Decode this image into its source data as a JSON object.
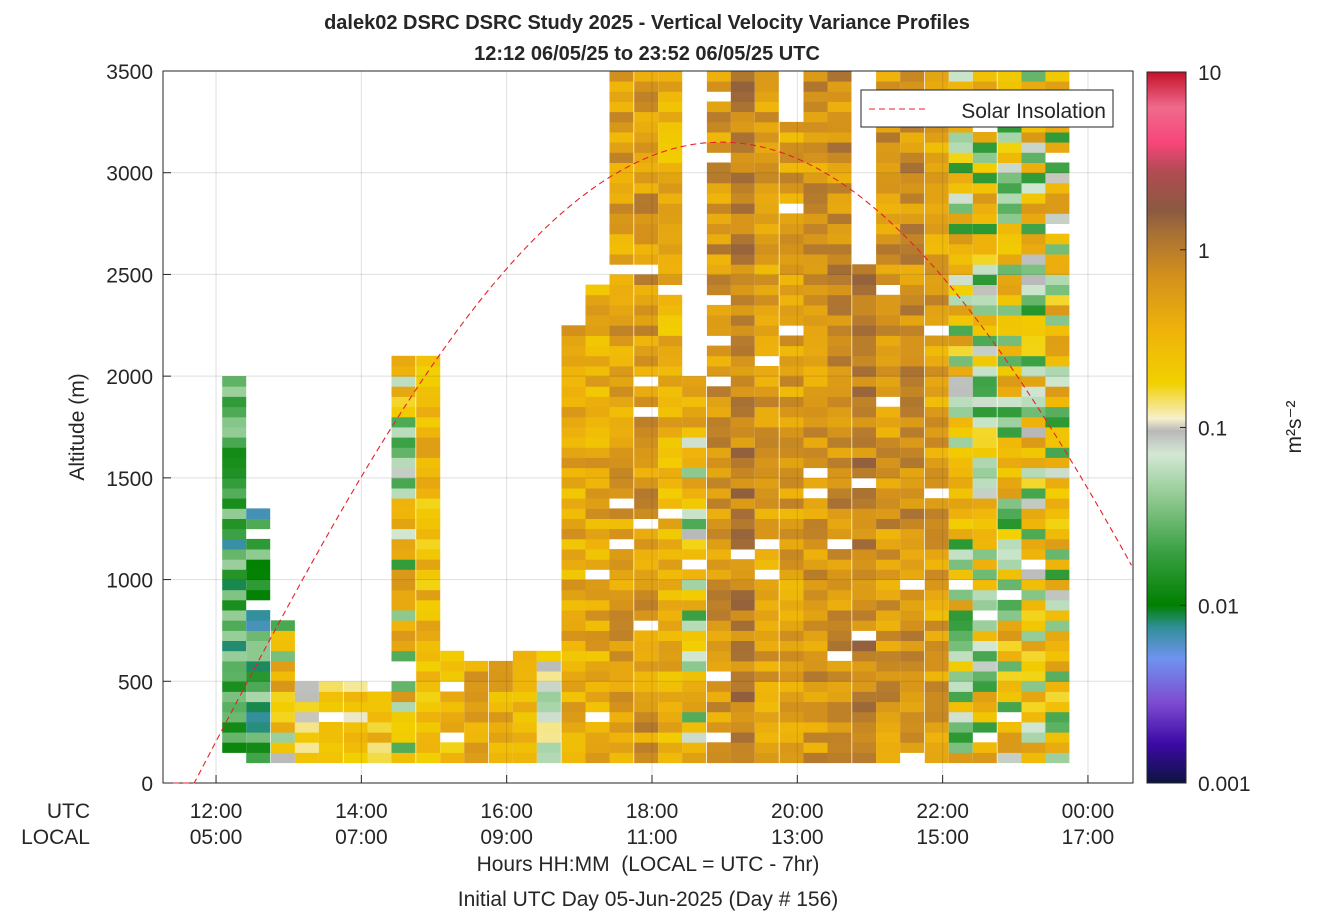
{
  "chart_data": {
    "type": "heatmap",
    "title": "dalek02 DSRC DSRC Study 2025 - Vertical Velocity Variance Profiles",
    "subtitle": "12:12 06/05/25 to 23:52 06/05/25  UTC",
    "ylabel": "Altitude (m)",
    "xlabel": "Hours HH:MM  (LOCAL = UTC - 7hr)",
    "xlabel2": "Initial UTC Day 05-Jun-2025 (Day # 156)",
    "xrow_labels": [
      "UTC",
      "LOCAL"
    ],
    "x_ticks": [
      {
        "utc": "12:00",
        "local": "05:00",
        "hour": 12
      },
      {
        "utc": "14:00",
        "local": "07:00",
        "hour": 14
      },
      {
        "utc": "16:00",
        "local": "09:00",
        "hour": 16
      },
      {
        "utc": "18:00",
        "local": "11:00",
        "hour": 18
      },
      {
        "utc": "20:00",
        "local": "13:00",
        "hour": 20
      },
      {
        "utc": "22:00",
        "local": "15:00",
        "hour": 22
      },
      {
        "utc": "00:00",
        "local": "17:00",
        "hour": 24
      }
    ],
    "xlim": [
      11.27,
      24.62
    ],
    "ylim": [
      0,
      3500
    ],
    "y_ticks": [
      0,
      500,
      1000,
      1500,
      2000,
      2500,
      3000,
      3500
    ],
    "y_tick_labels": [
      "0",
      "500",
      "1000",
      "1500",
      "2000",
      "2500",
      "3000",
      "3500"
    ],
    "grid": true,
    "legend": {
      "label": "Solar Insolation",
      "position": "top-right",
      "style": "dashed",
      "color": "#e8202a"
    },
    "solar_curve": {
      "start_hour": 11.7,
      "peak_hour": 18.95,
      "peak_altitude": 3150,
      "end_hour": 24.62,
      "end_altitude": 1000
    },
    "colorbar": {
      "label": "m²s⁻²",
      "scale": "log",
      "range": [
        0.001,
        10
      ],
      "tick_values": [
        0.001,
        0.01,
        0.1,
        1,
        10
      ],
      "tick_labels": [
        "0.001",
        "0.01",
        "0.1",
        "1",
        "10"
      ],
      "stops": [
        {
          "log": -3.0,
          "color": "#0c1340"
        },
        {
          "log": -2.78,
          "color": "#3c0aa6"
        },
        {
          "log": -2.55,
          "color": "#7d4bd0"
        },
        {
          "log": -2.3,
          "color": "#6f93f0"
        },
        {
          "log": -2.12,
          "color": "#2f8f96"
        },
        {
          "log": -2.0,
          "color": "#008000"
        },
        {
          "log": -1.7,
          "color": "#3aa043"
        },
        {
          "log": -1.4,
          "color": "#8ec990"
        },
        {
          "log": -1.15,
          "color": "#d4e8d4"
        },
        {
          "log": -1.02,
          "color": "#b8b8b8"
        },
        {
          "log": -0.95,
          "color": "#f6f0cc"
        },
        {
          "log": -0.75,
          "color": "#f2d000"
        },
        {
          "log": -0.45,
          "color": "#efb20b"
        },
        {
          "log": -0.15,
          "color": "#d3911c"
        },
        {
          "log": 0.1,
          "color": "#a66f35"
        },
        {
          "log": 0.22,
          "color": "#8a5a40"
        },
        {
          "log": 0.45,
          "color": "#b44a55"
        },
        {
          "log": 0.6,
          "color": "#f7457a"
        },
        {
          "log": 0.8,
          "color": "#f06a8c"
        },
        {
          "log": 1.0,
          "color": "#c4122b"
        }
      ]
    },
    "series": [
      {
        "hour": 12.25,
        "bottom": 100,
        "top": 2000,
        "level": "green",
        "value": 0.02
      },
      {
        "hour": 12.58,
        "bottom": 100,
        "top": 1350,
        "level": "green",
        "value": 0.025
      },
      {
        "hour": 12.92,
        "bottom": 100,
        "top": 800,
        "level": "mixed",
        "value": 0.06
      },
      {
        "hour": 13.25,
        "bottom": 100,
        "top": 500,
        "level": "light",
        "value": 0.15
      },
      {
        "hour": 13.58,
        "bottom": 100,
        "top": 500,
        "level": "yellow",
        "value": 0.2
      },
      {
        "hour": 13.92,
        "bottom": 100,
        "top": 500,
        "level": "yellow",
        "value": 0.2
      },
      {
        "hour": 14.25,
        "bottom": 100,
        "top": 450,
        "level": "yellow",
        "value": 0.25
      },
      {
        "hour": 14.58,
        "bottom": 100,
        "top": 2100,
        "level": "mixed",
        "value": 0.3
      },
      {
        "hour": 14.92,
        "bottom": 100,
        "top": 2100,
        "level": "yellow",
        "value": 0.3
      },
      {
        "hour": 15.25,
        "bottom": 100,
        "top": 650,
        "level": "yellow",
        "value": 0.3
      },
      {
        "hour": 15.58,
        "bottom": 100,
        "top": 600,
        "level": "orange",
        "value": 0.4
      },
      {
        "hour": 15.92,
        "bottom": 100,
        "top": 600,
        "level": "orange",
        "value": 0.4
      },
      {
        "hour": 16.25,
        "bottom": 100,
        "top": 650,
        "level": "yellow",
        "value": 0.3
      },
      {
        "hour": 16.58,
        "bottom": 100,
        "top": 650,
        "level": "light",
        "value": 0.15
      },
      {
        "hour": 16.92,
        "bottom": 100,
        "top": 2250,
        "level": "orange",
        "value": 0.4
      },
      {
        "hour": 17.25,
        "bottom": 100,
        "top": 2450,
        "level": "orange",
        "value": 0.4
      },
      {
        "hour": 17.58,
        "bottom": 100,
        "top": 3500,
        "level": "orange",
        "value": 0.5
      },
      {
        "hour": 17.92,
        "bottom": 100,
        "top": 3500,
        "level": "orange",
        "value": 0.6
      },
      {
        "hour": 18.25,
        "bottom": 100,
        "top": 3500,
        "level": "yellow",
        "value": 0.35
      },
      {
        "hour": 18.58,
        "bottom": 100,
        "top": 2000,
        "level": "mixed",
        "value": 0.2
      },
      {
        "hour": 18.92,
        "bottom": 100,
        "top": 3500,
        "level": "orange",
        "value": 0.6
      },
      {
        "hour": 19.25,
        "bottom": 100,
        "top": 3500,
        "level": "brown",
        "value": 0.8
      },
      {
        "hour": 19.58,
        "bottom": 100,
        "top": 3500,
        "level": "orange",
        "value": 0.5
      },
      {
        "hour": 19.92,
        "bottom": 100,
        "top": 3250,
        "level": "orange",
        "value": 0.5
      },
      {
        "hour": 20.25,
        "bottom": 100,
        "top": 3500,
        "level": "orange",
        "value": 0.6
      },
      {
        "hour": 20.58,
        "bottom": 100,
        "top": 3500,
        "level": "orange",
        "value": 0.7
      },
      {
        "hour": 20.92,
        "bottom": 100,
        "top": 2550,
        "level": "brown",
        "value": 0.9
      },
      {
        "hour": 21.25,
        "bottom": 100,
        "top": 3500,
        "level": "orange",
        "value": 0.6
      },
      {
        "hour": 21.58,
        "bottom": 100,
        "top": 3500,
        "level": "orange",
        "value": 0.7
      },
      {
        "hour": 21.92,
        "bottom": 100,
        "top": 3500,
        "level": "orange",
        "value": 0.5
      },
      {
        "hour": 22.25,
        "bottom": 100,
        "top": 3500,
        "level": "mixed",
        "value": 0.3
      },
      {
        "hour": 22.58,
        "bottom": 100,
        "top": 3500,
        "level": "mixed",
        "value": 0.2
      },
      {
        "hour": 22.92,
        "bottom": 100,
        "top": 3500,
        "level": "mixed",
        "value": 0.15
      },
      {
        "hour": 23.25,
        "bottom": 100,
        "top": 3500,
        "level": "mixed",
        "value": 0.1
      },
      {
        "hour": 23.58,
        "bottom": 100,
        "top": 3500,
        "level": "mixed",
        "value": 0.2
      }
    ]
  }
}
